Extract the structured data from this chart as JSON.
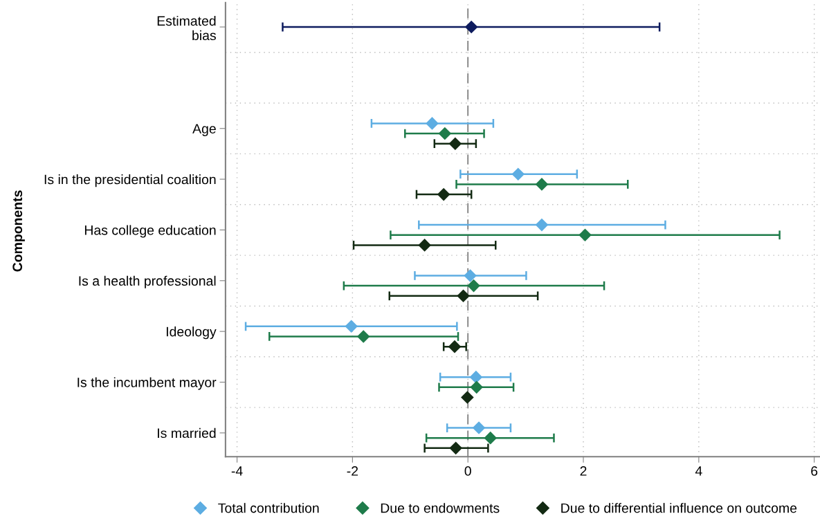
{
  "chart_data": {
    "type": "scatter",
    "orientation": "horizontal",
    "ylabel": "Components",
    "categories": [
      "Estimated\nbias",
      null,
      "Age",
      "Is in the presidential coalition",
      "Has college education",
      "Is a health professional",
      "Ideology",
      "Is the incumbent mayor",
      "Is married"
    ],
    "series": [
      {
        "color": "#0d1b5e",
        "values": [
          0.06,
          null,
          null,
          null,
          null,
          null,
          null,
          null,
          null
        ],
        "errors": [
          [
            -3.21,
            3.32
          ],
          null,
          null,
          null,
          null,
          null,
          null,
          null,
          null
        ]
      },
      {
        "name": "Total contribution",
        "color": "#5dade2",
        "values": [
          null,
          null,
          -0.62,
          0.87,
          1.28,
          0.04,
          -2.02,
          0.14,
          0.19
        ],
        "errors": [
          null,
          null,
          [
            -1.67,
            0.44
          ],
          [
            -0.13,
            1.89
          ],
          [
            -0.85,
            3.42
          ],
          [
            -0.92,
            1.01
          ],
          [
            -3.85,
            -0.19
          ],
          [
            -0.48,
            0.74
          ],
          [
            -0.36,
            0.74
          ]
        ]
      },
      {
        "name": "Due to endowments",
        "color": "#1e7b4a",
        "values": [
          null,
          null,
          -0.4,
          1.28,
          2.03,
          0.1,
          -1.81,
          0.15,
          0.39
        ],
        "errors": [
          null,
          null,
          [
            -1.09,
            0.28
          ],
          [
            -0.2,
            2.77
          ],
          [
            -1.34,
            5.4
          ],
          [
            -2.15,
            2.36
          ],
          [
            -3.44,
            -0.17
          ],
          [
            -0.5,
            0.79
          ],
          [
            -0.72,
            1.49
          ]
        ]
      },
      {
        "name": "Due to differential influence on outcome",
        "color": "#132a13",
        "values": [
          null,
          null,
          -0.22,
          -0.42,
          -0.75,
          -0.08,
          -0.23,
          -0.01,
          -0.21
        ],
        "errors": [
          null,
          null,
          [
            -0.58,
            0.14
          ],
          [
            -0.89,
            0.06
          ],
          [
            -1.98,
            0.48
          ],
          [
            -1.36,
            1.21
          ],
          [
            -0.42,
            -0.03
          ],
          null,
          [
            -0.75,
            0.35
          ]
        ]
      }
    ],
    "xlim": [
      -4.2,
      6.1
    ],
    "xticks": [
      -4,
      -2,
      0,
      2,
      4,
      6
    ],
    "ref_lines": [
      {
        "axis": "x",
        "value": 0,
        "color": "#808080",
        "line_style": "dashed"
      }
    ],
    "grid": true,
    "legend": "bottom",
    "marker": "diamond"
  }
}
